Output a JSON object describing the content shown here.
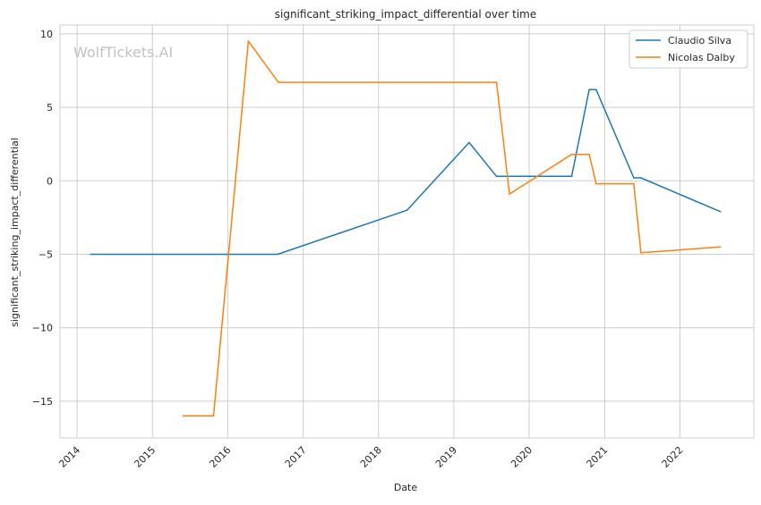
{
  "chart_data": {
    "type": "line",
    "title": "significant_striking_impact_differential over time",
    "xlabel": "Date",
    "ylabel": "significant_striking_impact_differential",
    "watermark": "WolfTickets.AI",
    "x_ticks": [
      "2014",
      "2015",
      "2016",
      "2017",
      "2018",
      "2019",
      "2020",
      "2021",
      "2022"
    ],
    "y_ticks": [
      "10",
      "5",
      "0",
      "−5",
      "−10",
      "−15"
    ],
    "xlim": [
      "2013-10-10",
      "2022-12-25"
    ],
    "ylim": [
      -17.5,
      10.6
    ],
    "grid": true,
    "legend_position": "top-right",
    "series": [
      {
        "name": "Claudio Silva",
        "color": "#1f77b4",
        "points": [
          [
            "2014-03-08",
            -5.0
          ],
          [
            "2016-08-30",
            -5.0
          ],
          [
            "2018-05-19",
            -2.0
          ],
          [
            "2019-03-16",
            2.6
          ],
          [
            "2019-07-27",
            0.3
          ],
          [
            "2020-07-25",
            0.3
          ],
          [
            "2020-10-18",
            6.2
          ],
          [
            "2020-11-21",
            6.2
          ],
          [
            "2021-05-22",
            0.2
          ],
          [
            "2021-06-26",
            0.2
          ],
          [
            "2022-07-16",
            -2.1
          ]
        ]
      },
      {
        "name": "Nicolas Dalby",
        "color": "#ff7f0e",
        "points": [
          [
            "2015-05-30",
            -16.0
          ],
          [
            "2015-10-24",
            -16.0
          ],
          [
            "2016-04-10",
            9.5
          ],
          [
            "2016-09-03",
            6.7
          ],
          [
            "2019-07-27",
            6.7
          ],
          [
            "2019-09-28",
            -0.9
          ],
          [
            "2020-07-25",
            1.8
          ],
          [
            "2020-10-18",
            1.8
          ],
          [
            "2020-11-21",
            -0.2
          ],
          [
            "2021-05-22",
            -0.2
          ],
          [
            "2021-06-26",
            -4.9
          ],
          [
            "2022-07-16",
            -4.5
          ]
        ]
      }
    ]
  }
}
